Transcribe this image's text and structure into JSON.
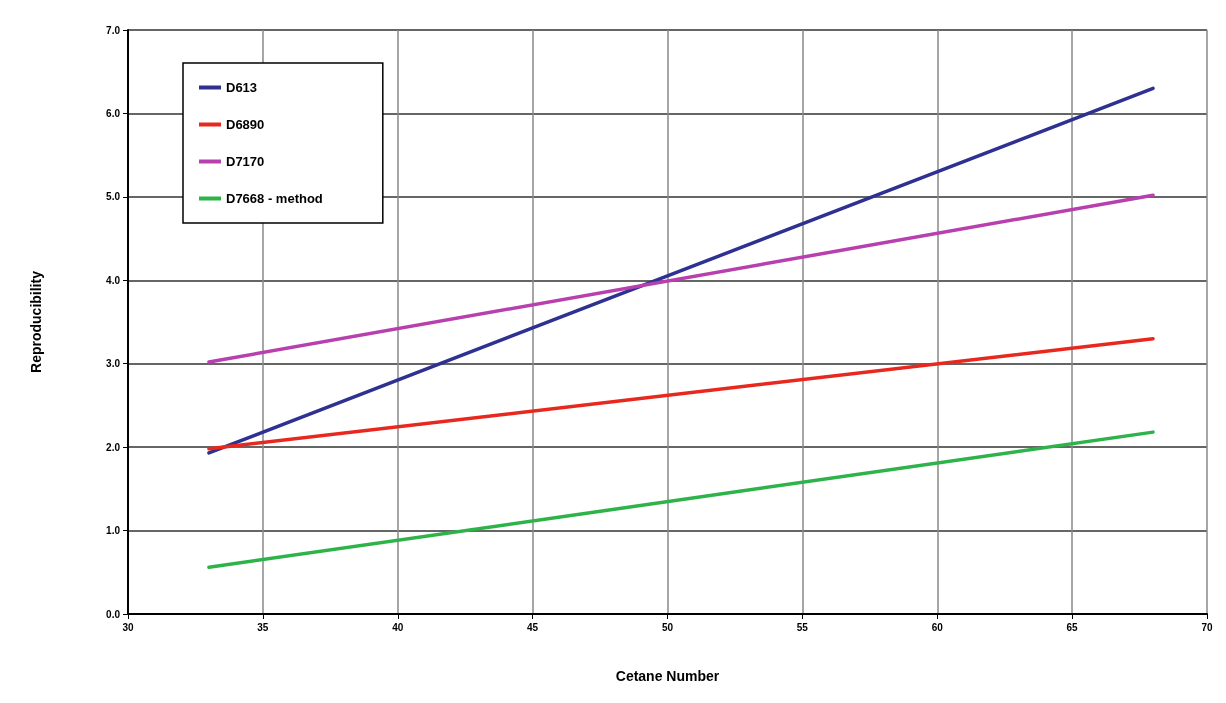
{
  "chart_data": {
    "type": "line",
    "xlabel": "Cetane Number",
    "ylabel": "Reproducibility",
    "x": [
      33,
      68
    ],
    "series": [
      {
        "name": "D613",
        "color": "#2e3192",
        "values": [
          1.93,
          6.3
        ]
      },
      {
        "name": "D6890",
        "color": "#e8281e",
        "values": [
          1.98,
          3.3
        ]
      },
      {
        "name": "D7170",
        "color": "#b83fae",
        "values": [
          3.02,
          5.02
        ]
      },
      {
        "name": "D7668 - method",
        "color": "#2db34a",
        "values": [
          0.56,
          2.18
        ]
      }
    ],
    "xlim": [
      30,
      70
    ],
    "xticks": [
      30,
      35,
      40,
      45,
      50,
      55,
      60,
      65,
      70
    ],
    "ylim": [
      0,
      7
    ],
    "yticks": [
      {
        "value": 0,
        "label": "0.0"
      },
      {
        "value": 1,
        "label": "1.0"
      },
      {
        "value": 2,
        "label": "2.0"
      },
      {
        "value": 3,
        "label": "3.0"
      },
      {
        "value": 4,
        "label": "4.0"
      },
      {
        "value": 5,
        "label": "5.0"
      },
      {
        "value": 6,
        "label": "6.0"
      },
      {
        "value": 7,
        "label": "7.0"
      }
    ],
    "grid": true,
    "legend": "top left",
    "marker": "none",
    "line_style": "solid"
  }
}
